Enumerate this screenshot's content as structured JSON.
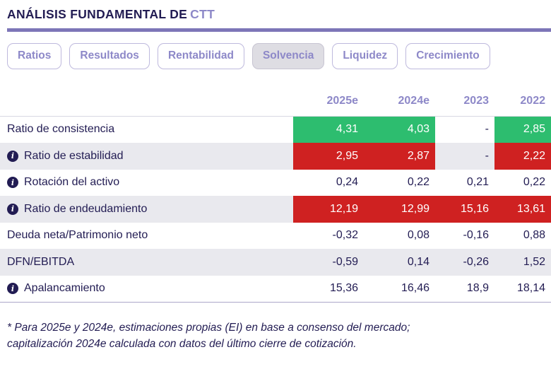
{
  "colors": {
    "positive": "#2dbd6f",
    "negative": "#cf2121",
    "accent": "#8d88c8",
    "navy": "#221c53",
    "divider": "#7d76b8",
    "stripe": "#e9e9ee"
  },
  "header": {
    "title": "ANÁLISIS FUNDAMENTAL DE",
    "ticker": "CTT"
  },
  "tabs": [
    {
      "label": "Ratios",
      "active": false
    },
    {
      "label": "Resultados",
      "active": false
    },
    {
      "label": "Rentabilidad",
      "active": false
    },
    {
      "label": "Solvencia",
      "active": true
    },
    {
      "label": "Liquidez",
      "active": false
    },
    {
      "label": "Crecimiento",
      "active": false
    }
  ],
  "info_icon_glyph": "i",
  "table": {
    "columns": [
      "2025e",
      "2024e",
      "2023",
      "2022"
    ],
    "rows": [
      {
        "label": "Ratio de consistencia",
        "info": false,
        "values": [
          "4,31",
          "4,03",
          "-",
          "2,85"
        ],
        "states": [
          "good",
          "good",
          "none",
          "good"
        ]
      },
      {
        "label": "Ratio de estabilidad",
        "info": true,
        "values": [
          "2,95",
          "2,87",
          "-",
          "2,22"
        ],
        "states": [
          "bad",
          "bad",
          "none",
          "bad"
        ]
      },
      {
        "label": "Rotación del activo",
        "info": true,
        "values": [
          "0,24",
          "0,22",
          "0,21",
          "0,22"
        ],
        "states": [
          "none",
          "none",
          "none",
          "none"
        ]
      },
      {
        "label": "Ratio de endeudamiento",
        "info": true,
        "values": [
          "12,19",
          "12,99",
          "15,16",
          "13,61"
        ],
        "states": [
          "bad",
          "bad",
          "bad",
          "bad"
        ]
      },
      {
        "label": "Deuda neta/Patrimonio neto",
        "info": false,
        "values": [
          "-0,32",
          "0,08",
          "-0,16",
          "0,88"
        ],
        "states": [
          "none",
          "none",
          "none",
          "none"
        ]
      },
      {
        "label": "DFN/EBITDA",
        "info": false,
        "values": [
          "-0,59",
          "0,14",
          "-0,26",
          "1,52"
        ],
        "states": [
          "none",
          "none",
          "none",
          "none"
        ]
      },
      {
        "label": "Apalancamiento",
        "info": true,
        "values": [
          "15,36",
          "16,46",
          "18,9",
          "18,14"
        ],
        "states": [
          "none",
          "none",
          "none",
          "none"
        ]
      }
    ]
  },
  "footnote": {
    "line1": "* Para 2025e y 2024e, estimaciones propias (EI) en base a consenso del mercado;",
    "line2": "capitalización 2024e calculada con datos del último cierre de cotización."
  }
}
